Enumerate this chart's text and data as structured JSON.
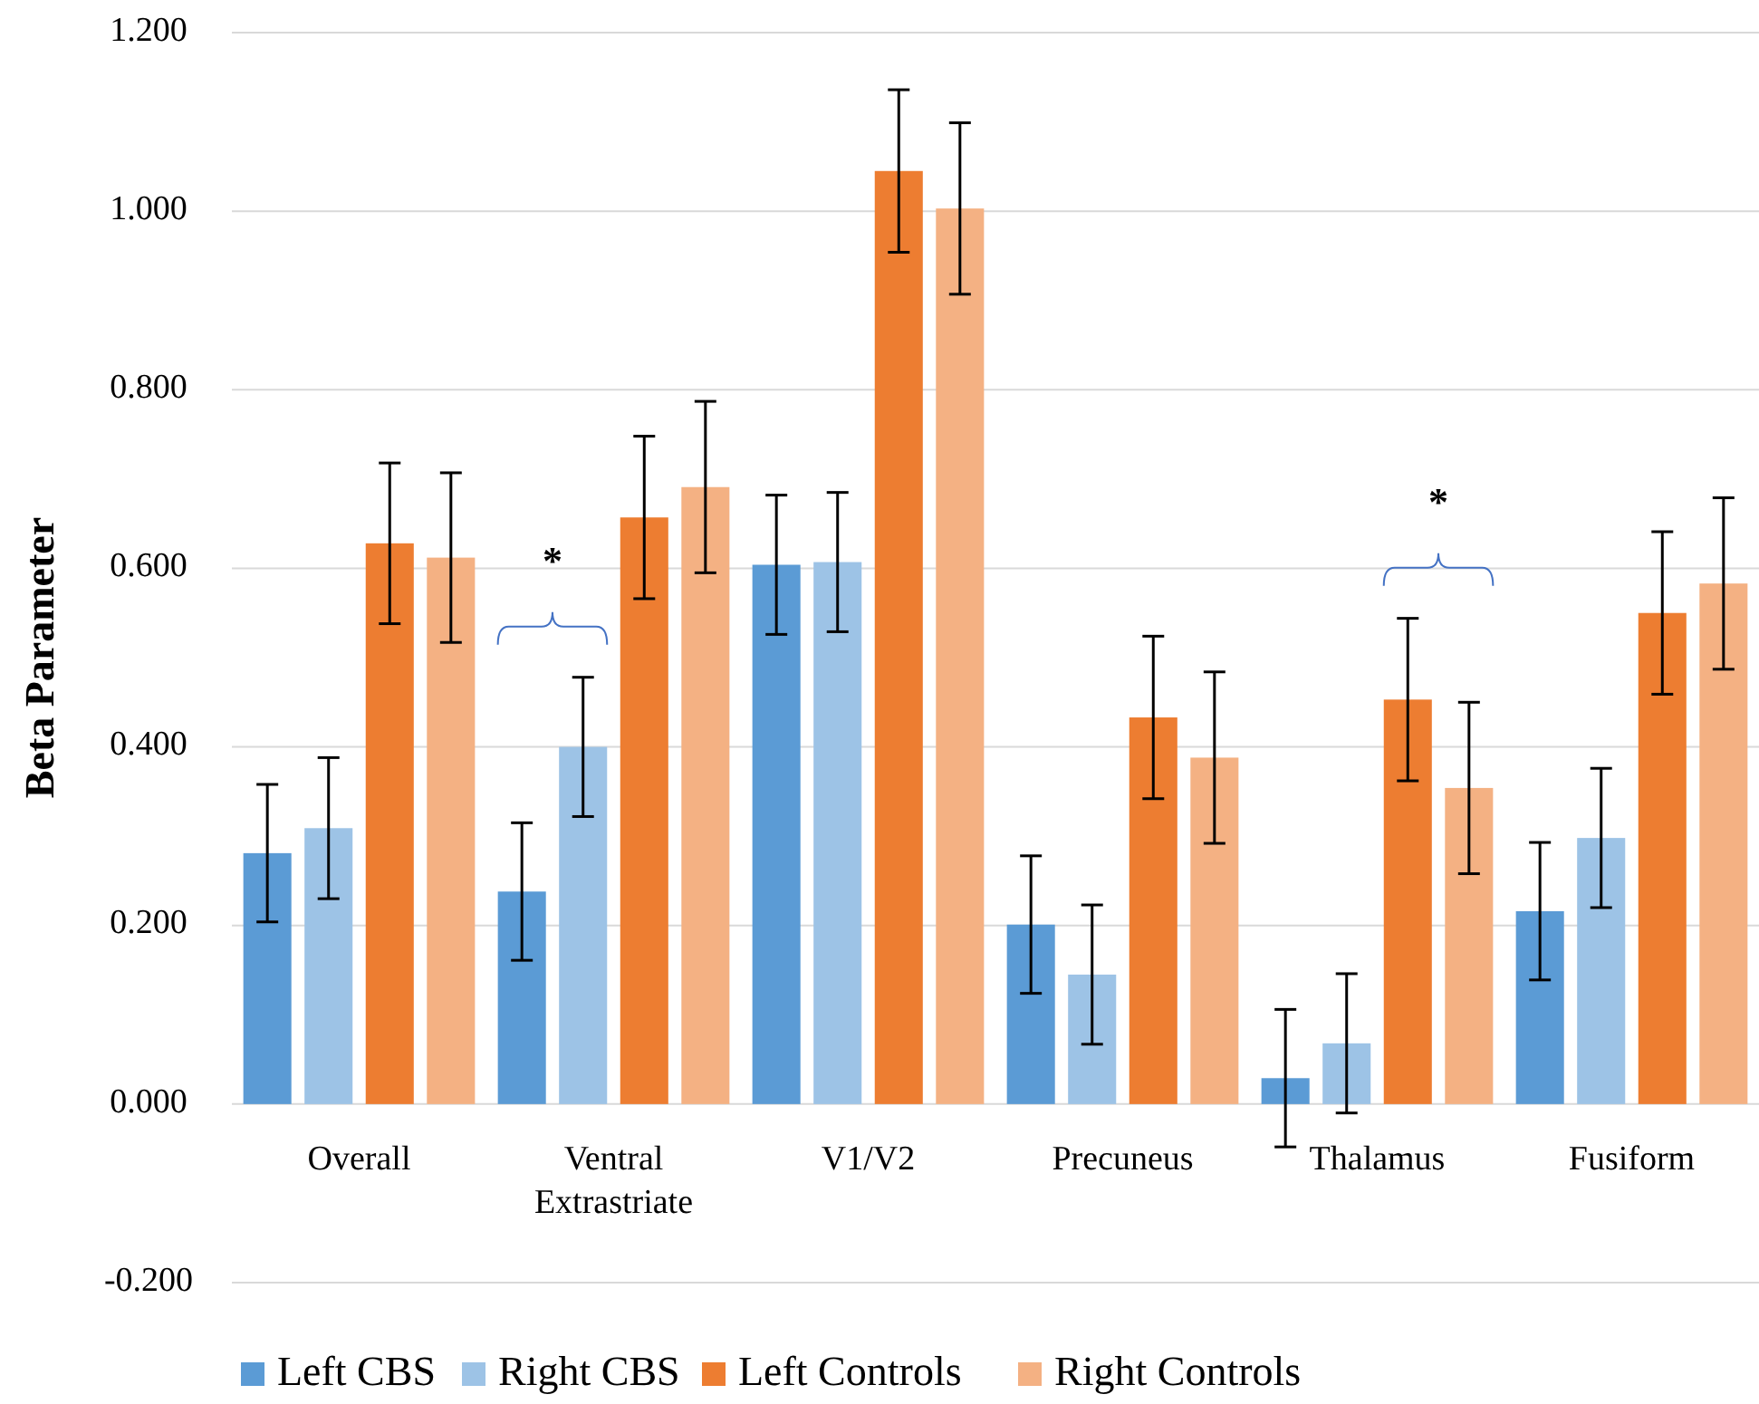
{
  "chart_data": {
    "type": "bar",
    "ylabel": "Beta Parameter",
    "categories": [
      "Overall",
      "Ventral Extrastriate",
      "V1/V2",
      "Precuneus",
      "Thalamus",
      "Fusiform"
    ],
    "series": [
      {
        "name": "Left CBS",
        "color": "#5b9bd5",
        "values": [
          0.281,
          0.238,
          0.604,
          0.201,
          0.029,
          0.216
        ],
        "errors": [
          0.077,
          0.077,
          0.078,
          0.077,
          0.077,
          0.077
        ]
      },
      {
        "name": "Right CBS",
        "color": "#9dc3e6",
        "values": [
          0.309,
          0.4,
          0.607,
          0.145,
          0.068,
          0.298
        ],
        "errors": [
          0.079,
          0.078,
          0.078,
          0.078,
          0.078,
          0.078
        ]
      },
      {
        "name": "Left Controls",
        "color": "#ed7d31",
        "values": [
          0.628,
          0.657,
          1.045,
          0.433,
          0.453,
          0.55
        ],
        "errors": [
          0.09,
          0.091,
          0.091,
          0.091,
          0.091,
          0.091
        ]
      },
      {
        "name": "Right Controls",
        "color": "#f4b183",
        "values": [
          0.612,
          0.691,
          1.003,
          0.388,
          0.354,
          0.583
        ],
        "errors": [
          0.095,
          0.096,
          0.096,
          0.096,
          0.096,
          0.096
        ]
      }
    ],
    "ylim": [
      -0.2,
      1.2
    ],
    "yticks": [
      {
        "value": -0.2,
        "label": "-0.200"
      },
      {
        "value": 0,
        "label": "0.000"
      },
      {
        "value": 0.2,
        "label": "0.200"
      },
      {
        "value": 0.4,
        "label": "0.400"
      },
      {
        "value": 0.6,
        "label": "0.600"
      },
      {
        "value": 0.8,
        "label": "0.800"
      },
      {
        "value": 1,
        "label": "1.000"
      },
      {
        "value": 1.2,
        "label": "1.200"
      }
    ],
    "grid": "y",
    "legend": "bottom",
    "annotations": [
      "*",
      "*"
    ]
  }
}
